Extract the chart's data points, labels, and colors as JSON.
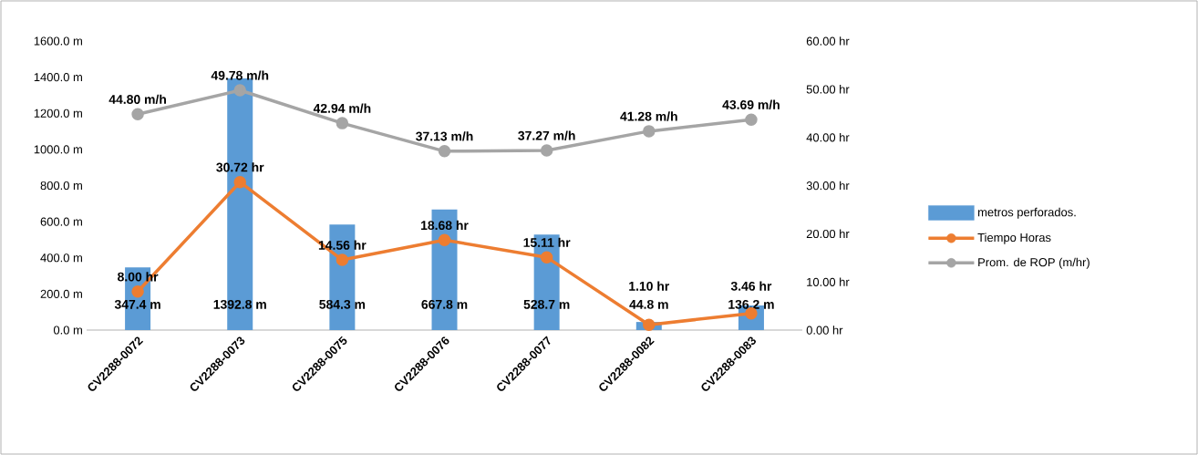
{
  "chart_data": {
    "type": "bar",
    "categories": [
      "CV2288-0072",
      "CV2288-0073",
      "CV2288-0075",
      "CV2288-0076",
      "CV2288-0077",
      "CV2288-0082",
      "CV2288-0083"
    ],
    "ylim": [
      0,
      1600
    ],
    "yticks": [
      {
        "value": 0,
        "label": "0.0 m"
      },
      {
        "value": 200,
        "label": "200.0 m"
      },
      {
        "value": 400,
        "label": "400.0 m"
      },
      {
        "value": 600,
        "label": "600.0 m"
      },
      {
        "value": 800,
        "label": "800.0 m"
      },
      {
        "value": 1000,
        "label": "1000.0 m"
      },
      {
        "value": 1200,
        "label": "1200.0 m"
      },
      {
        "value": 1400,
        "label": "1400.0 m"
      },
      {
        "value": 1600,
        "label": "1600.0 m"
      }
    ],
    "y2lim": [
      0,
      60
    ],
    "y2ticks": [
      {
        "value": 0,
        "label": "0.00 hr"
      },
      {
        "value": 10,
        "label": "10.00 hr"
      },
      {
        "value": 20,
        "label": "20.00 hr"
      },
      {
        "value": 30,
        "label": "30.00 hr"
      },
      {
        "value": 40,
        "label": "40.00 hr"
      },
      {
        "value": 50,
        "label": "50.00 hr"
      },
      {
        "value": 60,
        "label": "60.00 hr"
      }
    ],
    "legend": "right",
    "marker": "circle",
    "series": [
      {
        "name": "metros perforados.",
        "color": "#5b9bd5",
        "values": [
          347.4,
          1392.8,
          584.3,
          667.8,
          528.7,
          44.8,
          136.2
        ],
        "value_labels": [
          "347.4 m",
          "1392.8 m",
          "584.3 m",
          "667.8 m",
          "528.7 m",
          "44.8 m",
          "136.2 m"
        ]
      },
      {
        "name": "Tiempo Horas",
        "type": "line",
        "axis": "y2",
        "color": "#ed7d31",
        "values": [
          8.0,
          30.72,
          14.56,
          18.68,
          15.11,
          1.1,
          3.46
        ],
        "value_labels": [
          "8.00 hr",
          "30.72 hr",
          "14.56 hr",
          "18.68 hr",
          "15.11 hr",
          "1.10 hr",
          "3.46 hr"
        ]
      },
      {
        "name": "Prom. de ROP (m/hr)",
        "type": "line",
        "axis": "y2",
        "color": "#a5a5a5",
        "values": [
          44.8,
          49.78,
          42.94,
          37.13,
          37.27,
          41.28,
          43.69
        ],
        "value_labels": [
          "44.80 m/h",
          "49.78 m/h",
          "42.94 m/h",
          "37.13 m/h",
          "37.27 m/h",
          "41.28 m/h",
          "43.69 m/h"
        ]
      }
    ]
  }
}
